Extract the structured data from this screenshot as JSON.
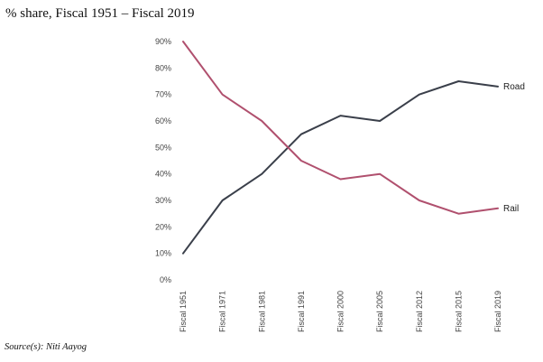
{
  "header": {
    "title": "% share, Fiscal 1951 – Fiscal 2019"
  },
  "footer": {
    "source": "Source(s): Niti Aayog"
  },
  "chart_data": {
    "type": "line",
    "title": "% share, Fiscal 1951 – Fiscal 2019",
    "xlabel": "",
    "ylabel": "",
    "categories": [
      "Fiscal 1951",
      "Fiscal 1971",
      "Fiscal 1981",
      "Fiscal 1991",
      "Fiscal 2000",
      "Fiscal 2005",
      "Fiscal 2012",
      "Fiscal 2015",
      "Fiscal 2019"
    ],
    "y_ticks": [
      "0%",
      "10%",
      "20%",
      "30%",
      "40%",
      "50%",
      "60%",
      "70%",
      "80%",
      "90%"
    ],
    "ylim": [
      0,
      90
    ],
    "grid": false,
    "legend": "inline labels at line ends",
    "series": [
      {
        "name": "Road",
        "color": "#3a3f4a",
        "values": [
          10,
          30,
          40,
          55,
          62,
          60,
          70,
          75,
          73
        ]
      },
      {
        "name": "Rail",
        "color": "#b0506e",
        "values": [
          90,
          70,
          60,
          45,
          38,
          40,
          30,
          25,
          27
        ]
      }
    ]
  }
}
